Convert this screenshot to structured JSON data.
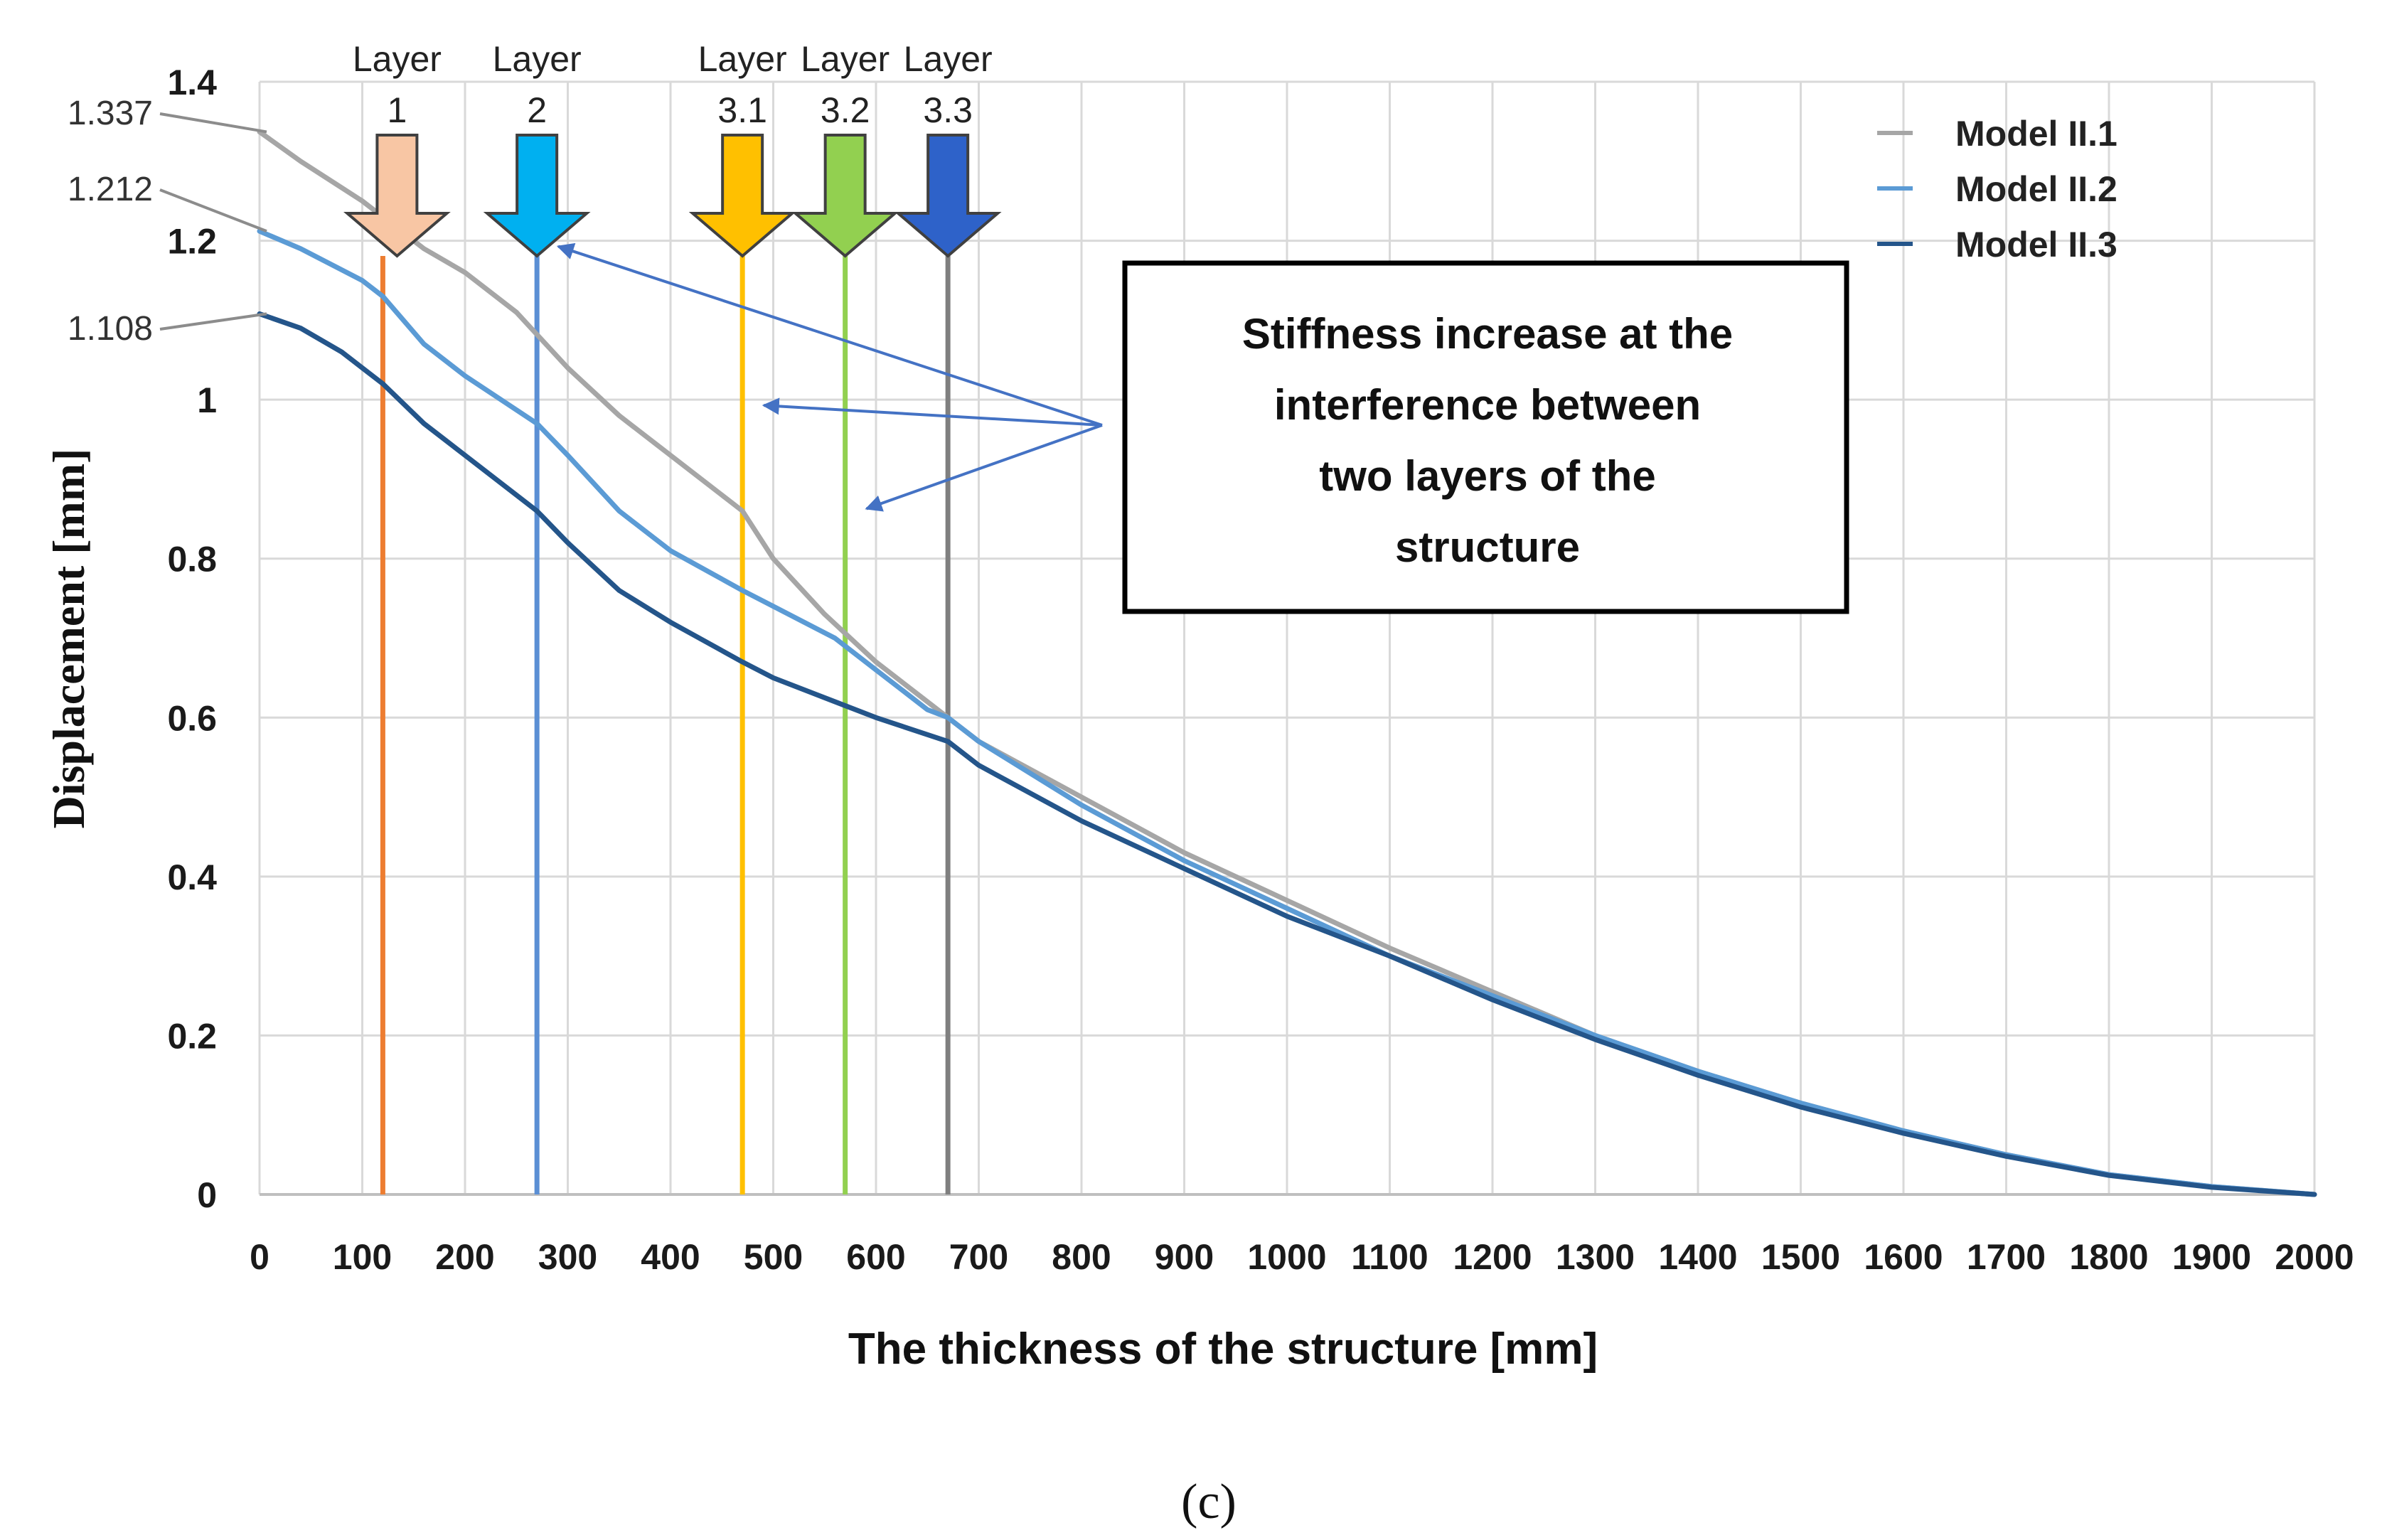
{
  "chart_data": {
    "type": "line",
    "xlabel": "The thickness of the structure [mm]",
    "ylabel": "Displacement [mm]",
    "xlim": [
      0,
      2000
    ],
    "ylim": [
      0,
      1.4
    ],
    "x_ticks": [
      "0",
      "100",
      "200",
      "300",
      "400",
      "500",
      "600",
      "700",
      "800",
      "900",
      "1000",
      "1100",
      "1200",
      "1300",
      "1400",
      "1500",
      "1600",
      "1700",
      "1800",
      "1900",
      "2000"
    ],
    "y_ticks": [
      "0",
      "0.2",
      "0.4",
      "0.6",
      "0.8",
      "1",
      "1.2",
      "1.4"
    ],
    "grid": true,
    "legend_position": "top-right",
    "series": [
      {
        "name": "Model II.1",
        "color": "#a6a6a6",
        "x": [
          0,
          40,
          100,
          160,
          200,
          250,
          300,
          350,
          400,
          450,
          470,
          500,
          550,
          600,
          650,
          670,
          700,
          800,
          900,
          1000,
          1100,
          1200,
          1300,
          1400,
          1500,
          1600,
          1700,
          1800,
          1900,
          2000
        ],
        "y": [
          1.337,
          1.3,
          1.25,
          1.19,
          1.16,
          1.11,
          1.04,
          0.98,
          0.93,
          0.88,
          0.86,
          0.8,
          0.73,
          0.67,
          0.62,
          0.6,
          0.57,
          0.5,
          0.43,
          0.37,
          0.31,
          0.255,
          0.2,
          0.155,
          0.115,
          0.08,
          0.05,
          0.025,
          0.01,
          0.0
        ]
      },
      {
        "name": "Model II.2",
        "color": "#5b9bd5",
        "x": [
          0,
          40,
          100,
          120,
          160,
          200,
          270,
          300,
          350,
          400,
          470,
          500,
          560,
          600,
          650,
          670,
          700,
          800,
          900,
          1000,
          1100,
          1200,
          1300,
          1400,
          1500,
          1600,
          1700,
          1800,
          1900,
          2000
        ],
        "y": [
          1.212,
          1.19,
          1.15,
          1.13,
          1.07,
          1.03,
          0.97,
          0.93,
          0.86,
          0.81,
          0.76,
          0.74,
          0.7,
          0.66,
          0.61,
          0.6,
          0.57,
          0.49,
          0.42,
          0.36,
          0.3,
          0.25,
          0.2,
          0.155,
          0.115,
          0.08,
          0.05,
          0.025,
          0.01,
          0.0
        ]
      },
      {
        "name": "Model II.3",
        "color": "#24558a",
        "x": [
          0,
          40,
          80,
          120,
          160,
          200,
          270,
          300,
          350,
          400,
          470,
          500,
          560,
          600,
          670,
          700,
          800,
          900,
          1000,
          1100,
          1200,
          1300,
          1400,
          1500,
          1600,
          1700,
          1800,
          1900,
          2000
        ],
        "y": [
          1.108,
          1.09,
          1.06,
          1.02,
          0.97,
          0.93,
          0.86,
          0.82,
          0.76,
          0.72,
          0.67,
          0.65,
          0.62,
          0.6,
          0.57,
          0.54,
          0.47,
          0.41,
          0.35,
          0.3,
          0.245,
          0.195,
          0.15,
          0.11,
          0.077,
          0.048,
          0.024,
          0.009,
          0.0
        ]
      }
    ],
    "layers": [
      {
        "label": "Layer\n1",
        "line1": "Layer",
        "line2": "1",
        "x": 120,
        "line_color": "#ed7d31",
        "arrow_color": "#f8c6a4"
      },
      {
        "label": "Layer\n2",
        "line1": "Layer",
        "line2": "2",
        "x": 270,
        "line_color": "#5b8fd4",
        "arrow_color": "#00b0f0"
      },
      {
        "label": "Layer\n3.1",
        "line1": "Layer",
        "line2": "3.1",
        "x": 470,
        "line_color": "#ffc000",
        "arrow_color": "#ffc000"
      },
      {
        "label": "Layer\n3.2",
        "line1": "Layer",
        "line2": "3.2",
        "x": 570,
        "line_color": "#92d050",
        "arrow_color": "#92d050"
      },
      {
        "label": "Layer\n3.3",
        "line1": "Layer",
        "line2": "3.3",
        "x": 670,
        "line_color": "#7f7f7f",
        "arrow_color": "#2e62c9"
      }
    ],
    "start_values": [
      {
        "label": "1.337",
        "series": "Model II.1",
        "value": 1.337
      },
      {
        "label": "1.212",
        "series": "Model II.2",
        "value": 1.212
      },
      {
        "label": "1.108",
        "series": "Model II.3",
        "value": 1.108
      }
    ],
    "annotation": {
      "lines": [
        "Stiffness increase at the",
        "interference between",
        "two layers of the",
        "structure"
      ],
      "arrow_color": "#4472c4",
      "targets": [
        {
          "x": 270,
          "y": 1.2
        },
        {
          "x": 470,
          "y": 1.0
        },
        {
          "x": 570,
          "y": 0.87
        }
      ]
    },
    "caption": "(c)"
  }
}
